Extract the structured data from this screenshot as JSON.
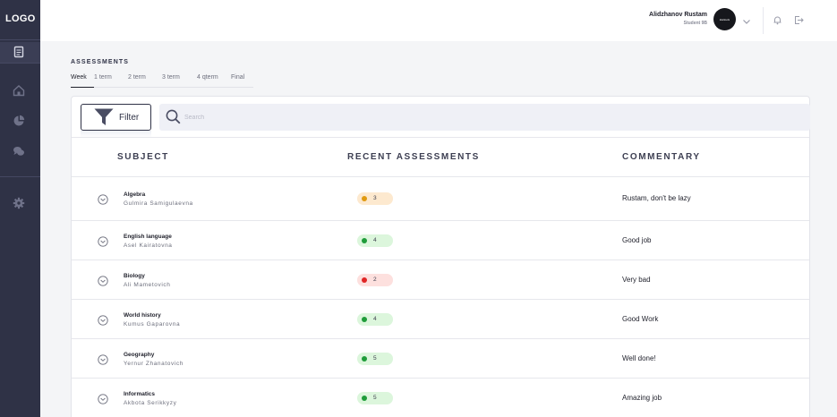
{
  "app": {
    "logo": "LOGO"
  },
  "user": {
    "name": "Alidzhanov Rustam",
    "role": "Student 9B",
    "avatar_text": "kiwitools"
  },
  "page": {
    "section_title": "ASSESSMENTS"
  },
  "tabs": [
    {
      "label": "Week",
      "active": true
    },
    {
      "label": "1 term",
      "active": false
    },
    {
      "label": "2 term",
      "active": false
    },
    {
      "label": "3 term",
      "active": false
    },
    {
      "label": "4 qterm",
      "active": false
    },
    {
      "label": "Final",
      "active": false
    }
  ],
  "toolbar": {
    "filter_label": "Filter",
    "search_placeholder": "Search"
  },
  "table": {
    "headers": {
      "subject": "SUBJECT",
      "recent": "RECENT ASSESSMENTS",
      "commentary": "COMMENTARY"
    },
    "rows": [
      {
        "subject": "Algebra",
        "teacher": "Gulmira Samigulaevna",
        "grade": "3",
        "grade_status": "average",
        "comment": "Rustam, don't be lazy"
      },
      {
        "subject": "English language",
        "teacher": "Asel Kairatovna",
        "grade": "4",
        "grade_status": "good",
        "comment": "Good job"
      },
      {
        "subject": "Biology",
        "teacher": "Ali Mametovich",
        "grade": "2",
        "grade_status": "bad",
        "comment": "Very bad"
      },
      {
        "subject": "World history",
        "teacher": "Kumus Gaparovna",
        "grade": "4",
        "grade_status": "good",
        "comment": "Good Work"
      },
      {
        "subject": "Geography",
        "teacher": "Yernur Zhanatovich",
        "grade": "5",
        "grade_status": "good",
        "comment": "Well done!"
      },
      {
        "subject": "Informatics",
        "teacher": "Akbota Serikkyzy",
        "grade": "5",
        "grade_status": "good",
        "comment": "Amazing job"
      }
    ]
  },
  "colors": {
    "sidebar": "#2f3246",
    "good_dot": "#1f9c3a",
    "good_bg": "#dcf6dc",
    "average_dot": "#e09a12",
    "average_bg": "#fde9cf",
    "bad_dot": "#e02626",
    "bad_bg": "#fde0de"
  },
  "icons": {
    "sidebar": [
      "journal-icon",
      "home-icon",
      "pie-chart-icon",
      "chat-icon",
      "settings-icon"
    ],
    "header": [
      "chevron-down-icon",
      "bell-icon",
      "logout-icon"
    ]
  }
}
